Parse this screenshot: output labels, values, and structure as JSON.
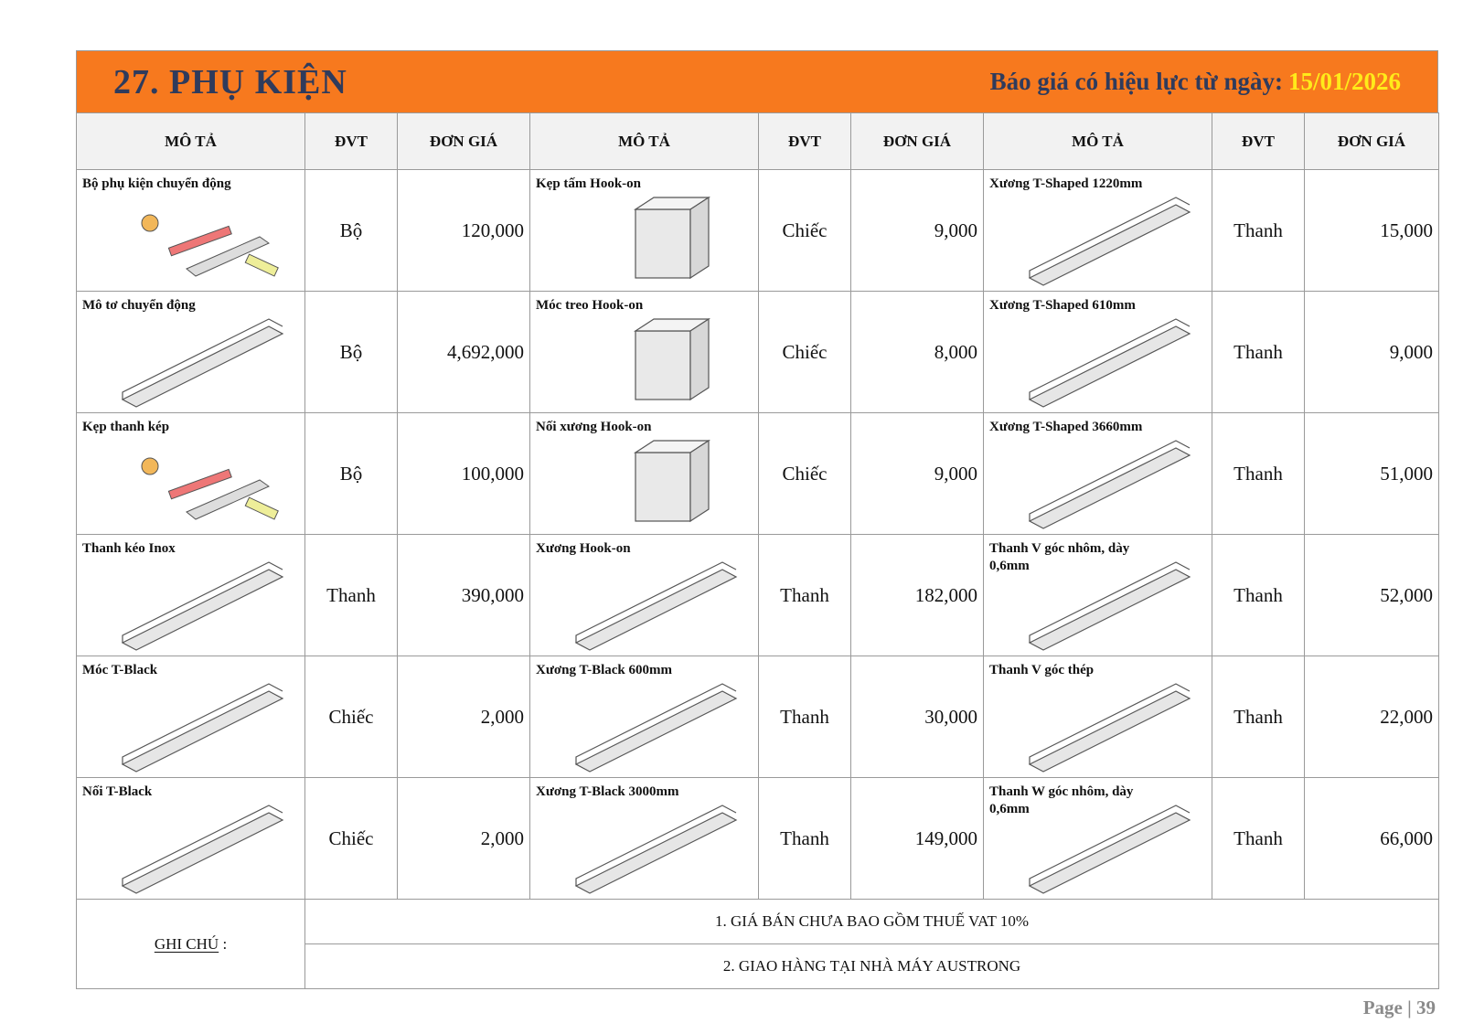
{
  "header": {
    "title": "27. PHỤ KIỆN",
    "validity_label": "Báo giá có hiệu lực từ ngày:",
    "validity_date": "15/01/2026"
  },
  "table": {
    "columns": [
      "MÔ TẢ",
      "ĐVT",
      "ĐƠN GIÁ",
      "MÔ TẢ",
      "ĐVT",
      "ĐƠN GIÁ",
      "MÔ TẢ",
      "ĐVT",
      "ĐƠN GIÁ"
    ],
    "rows": [
      [
        {
          "name": "Bộ phụ kiện chuyển động",
          "unit": "Bộ",
          "price": "120,000"
        },
        {
          "name": "Kẹp tấm Hook-on",
          "unit": "Chiếc",
          "price": "9,000"
        },
        {
          "name": "Xương T-Shaped 1220mm",
          "unit": "Thanh",
          "price": "15,000"
        }
      ],
      [
        {
          "name": "Mô tơ chuyển động",
          "unit": "Bộ",
          "price": "4,692,000"
        },
        {
          "name": "Móc treo Hook-on",
          "unit": "Chiếc",
          "price": "8,000"
        },
        {
          "name": "Xương T-Shaped 610mm",
          "unit": "Thanh",
          "price": "9,000"
        }
      ],
      [
        {
          "name": "Kẹp thanh kép",
          "unit": "Bộ",
          "price": "100,000"
        },
        {
          "name": "Nối xương Hook-on",
          "unit": "Chiếc",
          "price": "9,000"
        },
        {
          "name": "Xương T-Shaped 3660mm",
          "unit": "Thanh",
          "price": "51,000"
        }
      ],
      [
        {
          "name": "Thanh kéo Inox",
          "unit": "Thanh",
          "price": "390,000"
        },
        {
          "name": "Xương Hook-on",
          "unit": "Thanh",
          "price": "182,000"
        },
        {
          "name": "Thanh V góc nhôm, dày 0,6mm",
          "unit": "Thanh",
          "price": "52,000"
        }
      ],
      [
        {
          "name": "Móc T-Black",
          "unit": "Chiếc",
          "price": "2,000"
        },
        {
          "name": "Xương T-Black 600mm",
          "unit": "Thanh",
          "price": "30,000"
        },
        {
          "name": "Thanh V góc thép",
          "unit": "Thanh",
          "price": "22,000"
        }
      ],
      [
        {
          "name": "Nối T-Black",
          "unit": "Chiếc",
          "price": "2,000"
        },
        {
          "name": "Xương T-Black 3000mm",
          "unit": "Thanh",
          "price": "149,000"
        },
        {
          "name": "Thanh W góc nhôm, dày 0,6mm",
          "unit": "Thanh",
          "price": "66,000"
        }
      ]
    ]
  },
  "notes": {
    "label": "GHI CHÚ",
    "colon": ":",
    "items": [
      "1. GIÁ BÁN CHƯA BAO GỒM THUẾ VAT 10%",
      "2. GIAO HÀNG TẠI NHÀ MÁY AUSTRONG"
    ]
  },
  "footer": "Page | 39"
}
